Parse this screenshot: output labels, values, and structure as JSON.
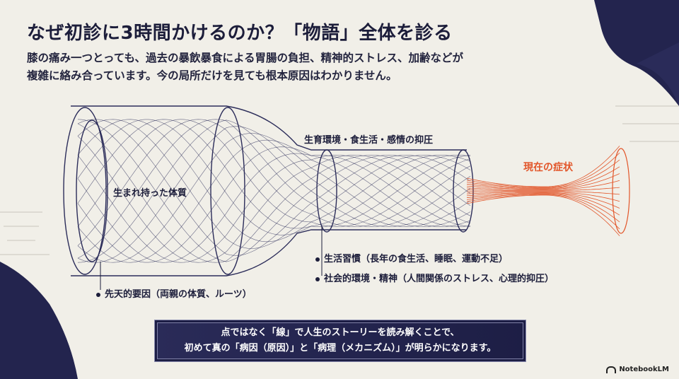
{
  "title": "なぜ初診に3時間かけるのか？「物語」全体を診る",
  "subtitle": [
    "膝の痛み一つとっても、過去の暴飲暴食による胃腸の負担、精神的ストレス、加齢などが",
    "複雑に絡み合っています。今の局所だけを見ても根本原因はわかりません。"
  ],
  "diagram": {
    "stage1_label": "生まれ持った体質",
    "stage2_label": "生育環境・食生活・感情の抑圧",
    "stage3_label": "現在の症状",
    "bullets": {
      "congenital": "先天的要因（両親の体質、ルーツ）",
      "lifestyle": "生活習慣（長年の食生活、睡眠、運動不足）",
      "social": "社会的環境・精神（人間関係のストレス、心理的抑圧）"
    },
    "colors": {
      "navy": "#1c1d3a",
      "line": "#3a3b6a",
      "accent": "#e2562a"
    }
  },
  "callout": [
    "点ではなく「線」で人生のストーリーを読み解くことで、",
    "初めて真の「病因（原因）」と「病理（メカニズム）」が明らかになります。"
  ],
  "branding": {
    "logo_text": "NotebookLM",
    "icon": "notebooklm-logo-icon"
  }
}
